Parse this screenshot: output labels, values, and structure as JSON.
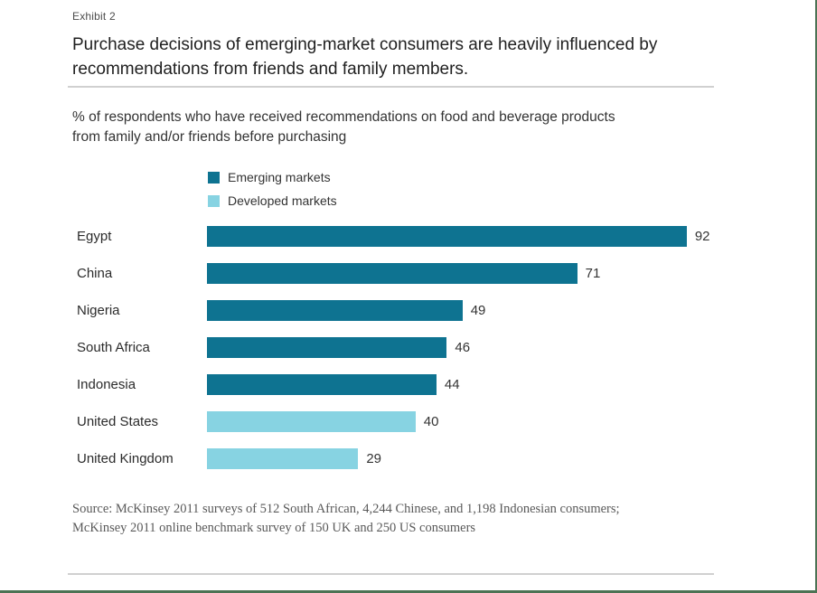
{
  "header": {
    "exhibit_label": "Exhibit 2",
    "title_line1": "Purchase decisions of emerging-market consumers are heavily influenced by",
    "title_line2": "recommendations from friends and family members."
  },
  "subtitle": {
    "line1": "% of respondents who have received recommendations on food and beverage products",
    "line2": "from family and/or friends before purchasing"
  },
  "legend": {
    "items": [
      {
        "label": "Emerging markets",
        "color": "#0e7391"
      },
      {
        "label": "Developed markets",
        "color": "#87d3e2"
      }
    ]
  },
  "chart_data": {
    "type": "bar",
    "orientation": "horizontal",
    "title": "% of respondents who have received recommendations on food and beverage products from family and/or friends before purchasing",
    "categories": [
      "Egypt",
      "China",
      "Nigeria",
      "South Africa",
      "Indonesia",
      "United States",
      "United Kingdom"
    ],
    "values": [
      92,
      71,
      49,
      46,
      44,
      40,
      29
    ],
    "group_by_point": [
      "Emerging markets",
      "Emerging markets",
      "Emerging markets",
      "Emerging markets",
      "Emerging markets",
      "Developed markets",
      "Developed markets"
    ],
    "xlim": [
      0,
      100
    ],
    "grid": false,
    "data_labels": true,
    "legend_position": "top-left"
  },
  "source": {
    "line1": "Source: McKinsey 2011 surveys of 512 South African, 4,244 Chinese, and 1,198 Indonesian consumers;",
    "line2": "McKinsey 2011 online benchmark survey of 150 UK and 250 US consumers"
  },
  "colors": {
    "emerging_markets": "#0e7391",
    "developed_markets": "#87d3e2",
    "page_border_green": "#4c7354",
    "divider_gray": "#d0d0d0"
  }
}
